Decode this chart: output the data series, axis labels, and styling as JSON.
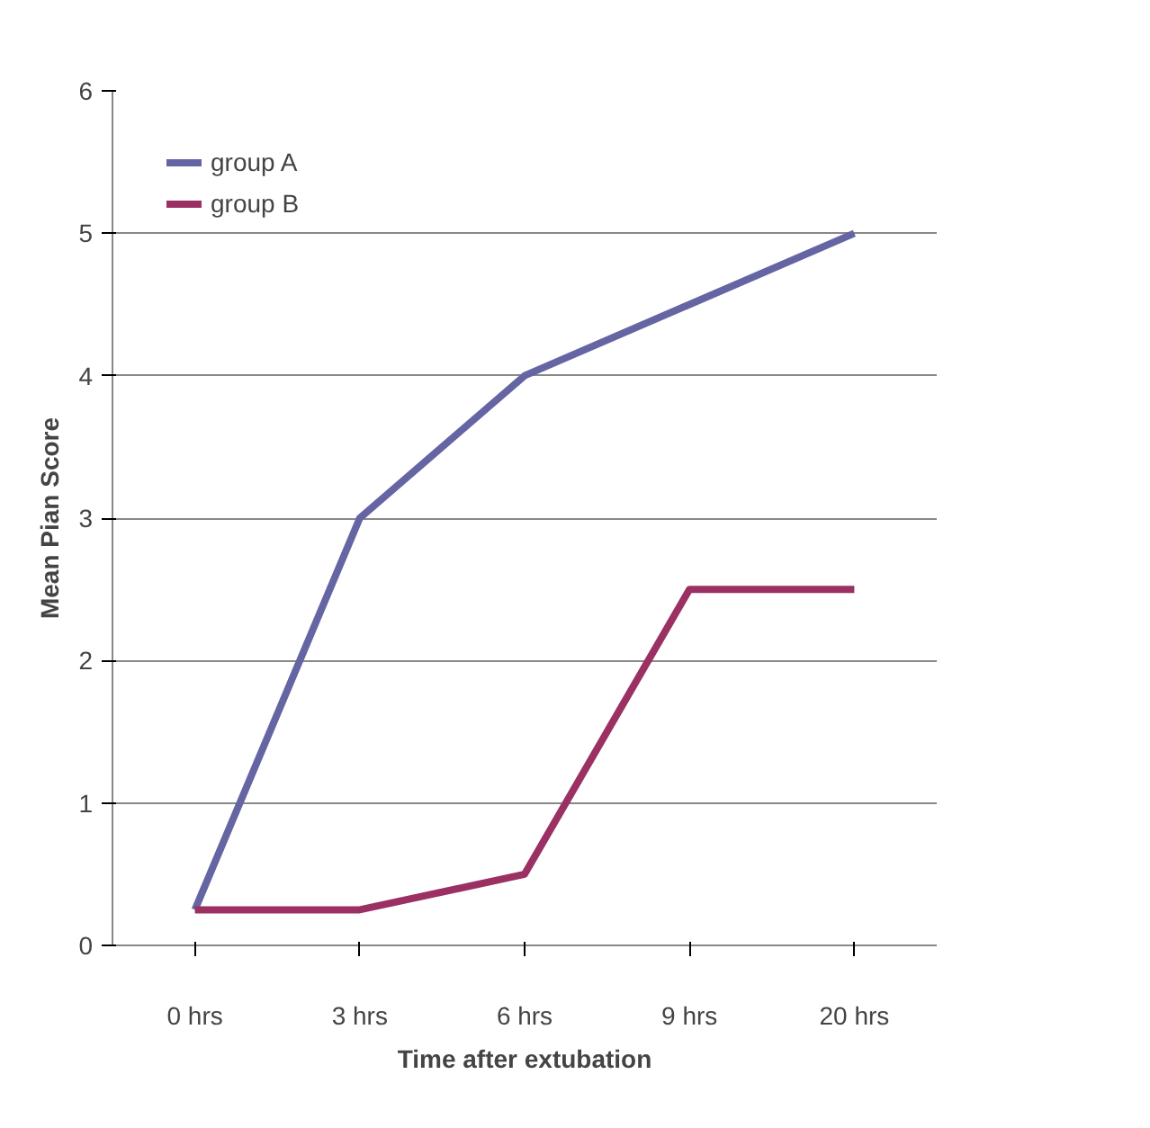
{
  "chart_data": {
    "type": "line",
    "categories": [
      "0 hrs",
      "3 hrs",
      "6 hrs",
      "9 hrs",
      "20 hrs"
    ],
    "series": [
      {
        "name": "group A",
        "color": "#6565a3",
        "values": [
          0.25,
          3,
          4,
          4.5,
          5
        ]
      },
      {
        "name": "group B",
        "color": "#9b3063",
        "values": [
          0.25,
          0.25,
          0.5,
          2.5,
          2.5
        ]
      }
    ],
    "xlabel": "Time after extubation",
    "ylabel": "Mean Pian Score",
    "ylim": [
      0,
      6
    ],
    "yticks": [
      0,
      1,
      2,
      3,
      4,
      5,
      6
    ],
    "grid": "y",
    "legend": "top left",
    "marker": "none",
    "line_style": "solid"
  }
}
